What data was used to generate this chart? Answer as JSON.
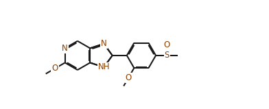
{
  "bg_color": "#ffffff",
  "line_color": "#1a1a1a",
  "heteroatom_color": "#8B4000",
  "bond_lw": 1.5,
  "dbo": 0.055,
  "fs": 8.5,
  "figsize": [
    3.92,
    1.59
  ],
  "dpi": 100,
  "xlim": [
    -0.5,
    10.5
  ],
  "ylim": [
    -0.3,
    5.3
  ]
}
